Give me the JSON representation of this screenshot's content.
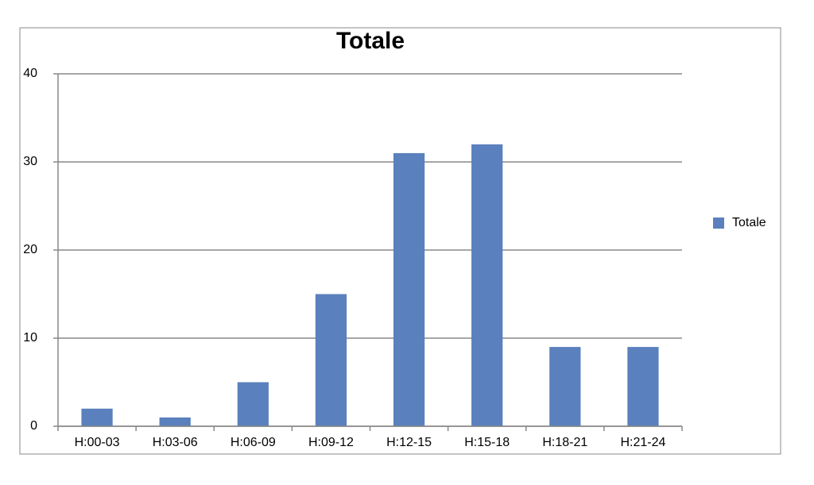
{
  "chart_data": {
    "type": "bar",
    "title": "Totale",
    "categories": [
      "H:00-03",
      "H:03-06",
      "H:06-09",
      "H:09-12",
      "H:12-15",
      "H:15-18",
      "H:18-21",
      "H:21-24"
    ],
    "series": [
      {
        "name": "Totale",
        "color": "#5a80bd",
        "values": [
          2,
          1,
          5,
          15,
          31,
          32,
          9,
          9
        ]
      }
    ],
    "ylim": [
      0,
      40
    ],
    "yticks": [
      0,
      10,
      20,
      30,
      40
    ],
    "grid": true,
    "legend": "right"
  }
}
